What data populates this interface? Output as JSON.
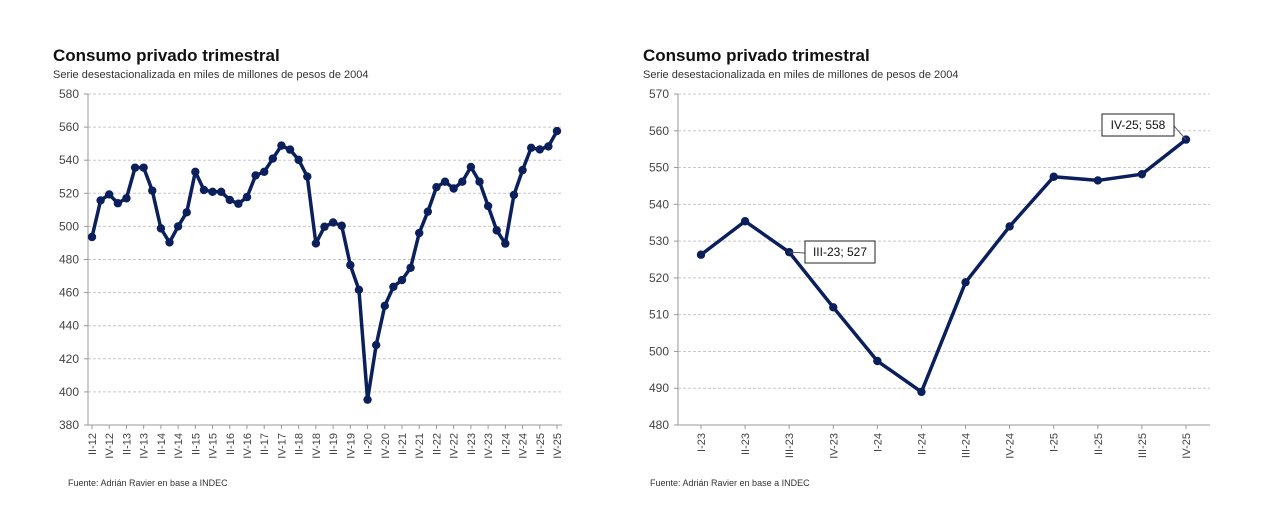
{
  "colors": {
    "series": "#0b1f5c",
    "grid": "#c8c8c8",
    "axis": "#999999"
  },
  "chart_data": [
    {
      "type": "line",
      "title": "Consumo privado trimestral",
      "subtitle": "Serie desestacionalizada en miles de millones de pesos de 2004",
      "source": "Fuente: Adrián Ravier en base a INDEC",
      "ylim": [
        380,
        580
      ],
      "yticks": [
        380,
        400,
        420,
        440,
        460,
        480,
        500,
        520,
        540,
        560,
        580
      ],
      "grid": true,
      "x": [
        "II-12",
        "III-12",
        "IV-12",
        "I-13",
        "II-13",
        "III-13",
        "IV-13",
        "I-14",
        "II-14",
        "III-14",
        "IV-14",
        "I-15",
        "II-15",
        "III-15",
        "IV-15",
        "I-16",
        "II-16",
        "III-16",
        "IV-16",
        "I-17",
        "II-17",
        "III-17",
        "IV-17",
        "I-18",
        "II-18",
        "III-18",
        "IV-18",
        "I-19",
        "II-19",
        "III-19",
        "IV-19",
        "I-20",
        "II-20",
        "III-20",
        "IV-20",
        "I-21",
        "II-21",
        "III-21",
        "IV-21",
        "I-22",
        "II-22",
        "III-22",
        "IV-22",
        "I-23",
        "II-23",
        "III-23",
        "IV-23",
        "I-24",
        "II-24",
        "III-24",
        "IV-24",
        "I-25",
        "II-25",
        "III-25",
        "IV-25"
      ],
      "xtick_labels": [
        "II-12",
        "IV-12",
        "II-13",
        "IV-13",
        "II-14",
        "IV-14",
        "II-15",
        "IV-15",
        "II-16",
        "IV-16",
        "II-17",
        "IV-17",
        "II-18",
        "IV-18",
        "II-19",
        "IV-19",
        "II-20",
        "IV-20",
        "II-21",
        "IV-21",
        "II-22",
        "IV-22",
        "II-23",
        "IV-23",
        "II-24",
        "IV-24",
        "II-25",
        "IV-25"
      ],
      "values": [
        493.6,
        515.7,
        519.3,
        514,
        517,
        535.5,
        535.5,
        521.6,
        498.8,
        490.3,
        500,
        508.5,
        533,
        522,
        520.9,
        520.9,
        516,
        513.7,
        517.7,
        530.8,
        533,
        541,
        548.8,
        546.4,
        540.2,
        530.1,
        489.7,
        499.8,
        502.4,
        500.4,
        476.6,
        461.7,
        395.3,
        428.3,
        452,
        463.5,
        467.6,
        475,
        496,
        508.9,
        523.7,
        527,
        522.9,
        527,
        535.9,
        527,
        512.3,
        497.6,
        489.6,
        519,
        534,
        547.5,
        546.5,
        548.3,
        557.6
      ]
    },
    {
      "type": "line",
      "title": "Consumo privado trimestral",
      "subtitle": "Serie desestacionalizada en miles de millones de pesos de 2004",
      "source": "Fuente: Adrián Ravier en base a INDEC",
      "ylim": [
        480,
        570
      ],
      "yticks": [
        480,
        490,
        500,
        510,
        520,
        530,
        540,
        550,
        560,
        570
      ],
      "grid": true,
      "x": [
        "I-23",
        "II-23",
        "III-23",
        "IV-23",
        "I-24",
        "II-24",
        "III-24",
        "IV-24",
        "I-25",
        "II-25",
        "III-25",
        "IV-25"
      ],
      "xtick_labels": [
        "I-23",
        "II-23",
        "III-23",
        "IV-23",
        "I-24",
        "II-24",
        "III-24",
        "IV-24",
        "I-25",
        "II-25",
        "III-25",
        "IV-25"
      ],
      "values": [
        526.3,
        535.4,
        527,
        512,
        497.4,
        489,
        518.8,
        534,
        547.5,
        546.5,
        548.2,
        557.6
      ],
      "annotations": [
        "III-23; 527",
        "IV-25; 558"
      ]
    }
  ]
}
